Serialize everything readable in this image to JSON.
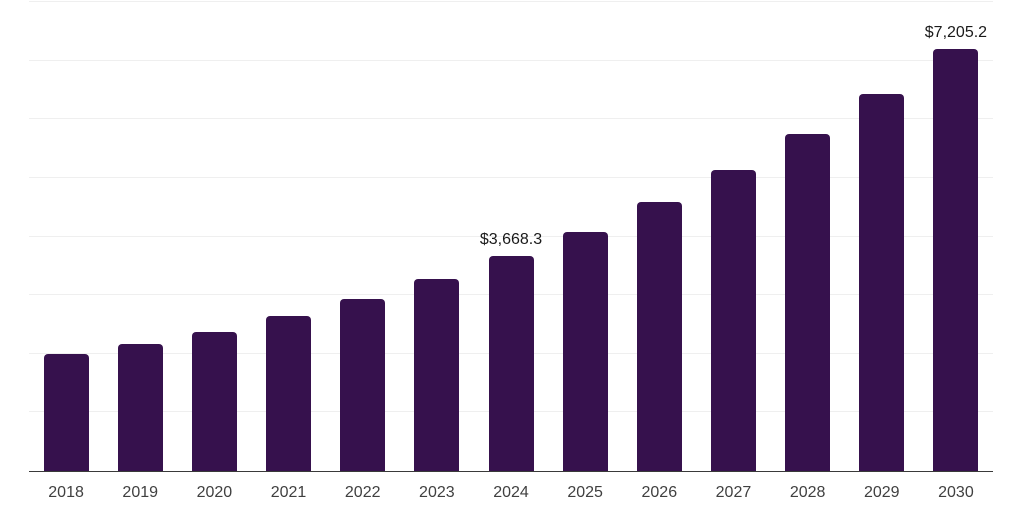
{
  "chart_data": {
    "type": "bar",
    "title": "",
    "xlabel": "",
    "ylabel": "",
    "categories": [
      "2018",
      "2019",
      "2020",
      "2021",
      "2022",
      "2023",
      "2024",
      "2025",
      "2026",
      "2027",
      "2028",
      "2029",
      "2030"
    ],
    "values": [
      1990,
      2175,
      2375,
      2640,
      2930,
      3280,
      3668.3,
      4085,
      4585,
      5135,
      5750,
      6430,
      7205.2
    ],
    "data_labels": [
      "",
      "",
      "",
      "",
      "",
      "",
      "$3,668.3",
      "",
      "",
      "",
      "",
      "",
      "$7,205.2"
    ],
    "ylim": [
      0,
      8000
    ],
    "gridline_step": 1000,
    "grid": true,
    "legend_position": "none",
    "colors": {
      "bar": "#36114D",
      "gridline": "#efefef",
      "axis_line": "#3a3a3a",
      "value_label": "#1a1a1a",
      "tick_label": "#404040",
      "background": "#ffffff"
    }
  }
}
